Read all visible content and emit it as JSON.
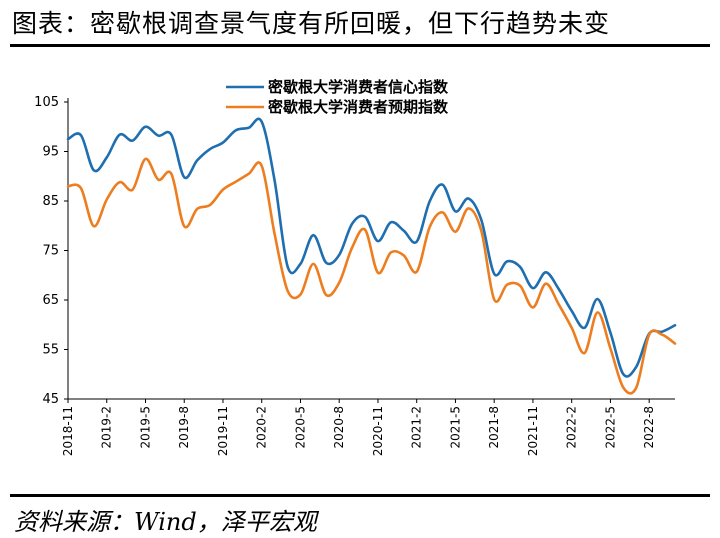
{
  "figure": {
    "title": "图表：密歇根调查景气度有所回暖，但下行趋势未变",
    "source": "资料来源：Wind，泽平宏观"
  },
  "colors": {
    "series1": "#1f6fb0",
    "series2": "#ed7d1f"
  },
  "chart_data": {
    "type": "line",
    "x_tick_labels": [
      "2018-11",
      "2019-2",
      "2019-5",
      "2019-8",
      "2019-11",
      "2020-2",
      "2020-5",
      "2020-8",
      "2020-11",
      "2021-2",
      "2021-5",
      "2021-8",
      "2021-11",
      "2022-2",
      "2022-5",
      "2022-8"
    ],
    "x": [
      "2018-11",
      "2018-12",
      "2019-1",
      "2019-2",
      "2019-3",
      "2019-4",
      "2019-5",
      "2019-6",
      "2019-7",
      "2019-8",
      "2019-9",
      "2019-10",
      "2019-11",
      "2019-12",
      "2020-1",
      "2020-2",
      "2020-3",
      "2020-4",
      "2020-5",
      "2020-6",
      "2020-7",
      "2020-8",
      "2020-9",
      "2020-10",
      "2020-11",
      "2020-12",
      "2021-1",
      "2021-2",
      "2021-3",
      "2021-4",
      "2021-5",
      "2021-6",
      "2021-7",
      "2021-8",
      "2021-9",
      "2021-10",
      "2021-11",
      "2021-12",
      "2022-1",
      "2022-2",
      "2022-3",
      "2022-4",
      "2022-5",
      "2022-6",
      "2022-7",
      "2022-8",
      "2022-9",
      "2022-10"
    ],
    "ylim": [
      45,
      105
    ],
    "y_ticks": [
      45,
      55,
      65,
      75,
      85,
      95,
      105
    ],
    "legend_position": "top-center",
    "series": [
      {
        "name": "密歇根大学消费者信心指数",
        "values": [
          97.5,
          98.3,
          91.2,
          93.8,
          98.4,
          97.2,
          100.0,
          98.2,
          98.4,
          89.8,
          93.2,
          95.5,
          96.8,
          99.3,
          99.8,
          101.0,
          89.1,
          71.8,
          72.3,
          78.1,
          72.5,
          74.1,
          80.4,
          81.8,
          76.9,
          80.7,
          79.0,
          76.8,
          84.9,
          88.3,
          82.9,
          85.5,
          81.2,
          70.3,
          72.8,
          71.7,
          67.4,
          70.6,
          67.2,
          62.8,
          59.4,
          65.2,
          58.4,
          50.0,
          51.5,
          58.2,
          58.6,
          59.9
        ]
      },
      {
        "name": "密歇根大学消费者预期指数",
        "values": [
          88.0,
          87.6,
          79.9,
          85.3,
          88.8,
          87.3,
          93.5,
          89.3,
          90.5,
          79.9,
          83.4,
          84.2,
          87.3,
          88.9,
          90.5,
          92.1,
          78.3,
          66.9,
          66.1,
          72.3,
          66.0,
          68.5,
          75.6,
          79.2,
          70.5,
          74.6,
          74.0,
          70.7,
          79.7,
          82.7,
          78.8,
          83.5,
          79.0,
          65.1,
          68.1,
          67.9,
          63.5,
          68.3,
          64.1,
          59.4,
          54.3,
          62.5,
          55.2,
          47.3,
          47.3,
          58.0,
          58.0,
          56.2
        ]
      }
    ]
  }
}
